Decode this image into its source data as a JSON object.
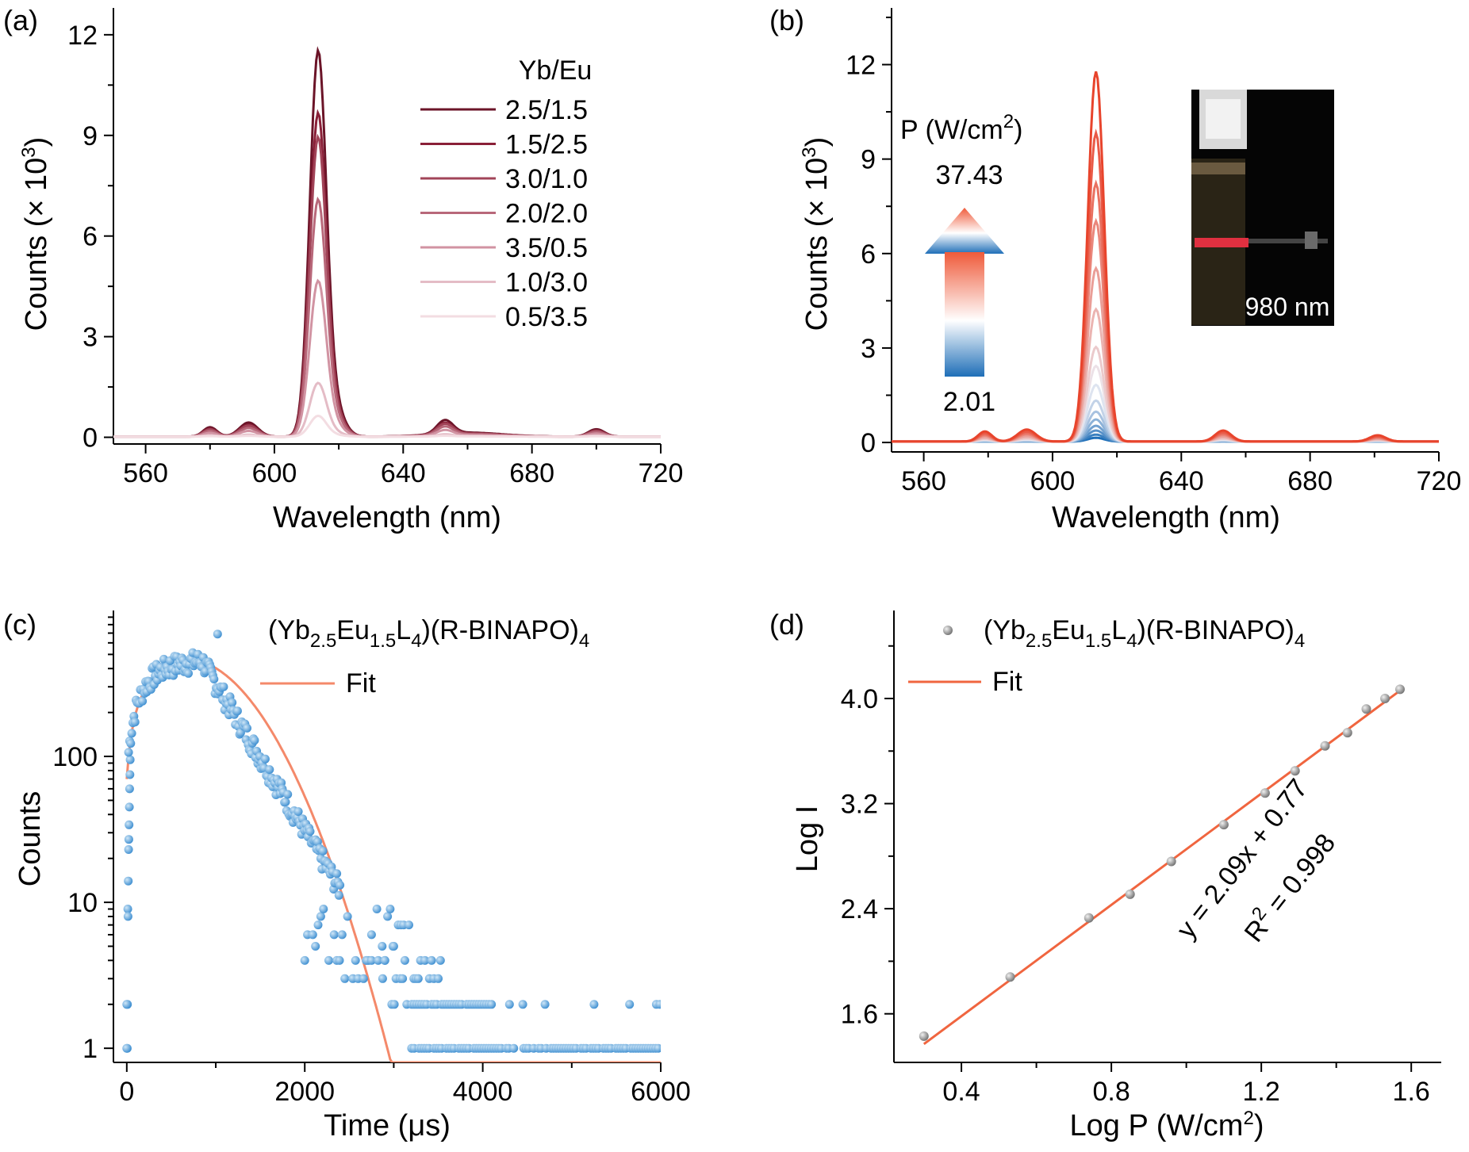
{
  "colors": {
    "a_series": [
      "#6b1428",
      "#8a2038",
      "#a14458",
      "#b8687a",
      "#d193a2",
      "#e4bcc6",
      "#f3dde2"
    ],
    "b_hot": "#e8442c",
    "b_cold": "#2a78c0",
    "c_points": "#5aa3d8",
    "c_fit": "#f4896a",
    "d_points": "#8a8a8a",
    "d_fit": "#f0653f"
  },
  "chart_data": [
    {
      "id": "a",
      "type": "line",
      "panel_label": "(a)",
      "xlabel": "Wavelength (nm)",
      "ylabel": "Counts (× 10",
      "ylabel_sup": "3",
      "ylabel_close": ")",
      "xlim": [
        550,
        720
      ],
      "ylim": [
        -0.2,
        12.8
      ],
      "xticks": [
        "560",
        "600",
        "640",
        "680",
        "720"
      ],
      "yticks": [
        "0",
        "3",
        "6",
        "9",
        "12"
      ],
      "legend_title": "Yb/Eu",
      "series": [
        {
          "name": "2.5/1.5",
          "peak": 11.15
        },
        {
          "name": "1.5/2.5",
          "peak": 9.35
        },
        {
          "name": "3.0/1.0",
          "peak": 8.65
        },
        {
          "name": "2.0/2.0",
          "peak": 6.85
        },
        {
          "name": "3.5/0.5",
          "peak": 4.5
        },
        {
          "name": "1.0/3.0",
          "peak": 1.55
        },
        {
          "name": "0.5/3.5",
          "peak": 0.6
        }
      ]
    },
    {
      "id": "b",
      "type": "line",
      "panel_label": "(b)",
      "xlabel": "Wavelength (nm)",
      "ylabel": "Counts (× 10",
      "ylabel_sup": "3",
      "ylabel_close": ")",
      "xlim": [
        550,
        720
      ],
      "ylim": [
        -0.3,
        13.8
      ],
      "xticks": [
        "560",
        "600",
        "640",
        "680",
        "720"
      ],
      "yticks": [
        "0",
        "3",
        "6",
        "9",
        "12"
      ],
      "power_title": "P (W/cm",
      "power_title_sup": "2",
      "power_title_close": ")",
      "power_max": "37.43",
      "power_min": "2.01",
      "inset_label": "980 nm",
      "series_peaks": [
        0.12,
        0.22,
        0.35,
        0.5,
        0.7,
        0.95,
        1.3,
        1.8,
        2.4,
        3.0,
        4.2,
        5.5,
        7.0,
        8.2,
        9.8,
        11.75
      ]
    },
    {
      "id": "c",
      "type": "scatter",
      "panel_label": "(c)",
      "xlabel": "Time (μs)",
      "ylabel": "Counts",
      "yscale": "log",
      "xlim": [
        -150,
        6000
      ],
      "ylim": [
        0.8,
        1000
      ],
      "xticks": [
        "0",
        "2000",
        "4000",
        "6000"
      ],
      "yticks": [
        "1",
        "10",
        "100"
      ],
      "legend": [
        {
          "name": "(Yb",
          "sub1": "2.5",
          "mid1": "Eu",
          "sub2": "1.5",
          "mid2": "L",
          "sub3": "4",
          "tail": ")(R-BINAPO)",
          "sub4": "4"
        },
        {
          "name": "Fit"
        }
      ],
      "rise_decay_peak": {
        "x": 830,
        "y": 450
      }
    },
    {
      "id": "d",
      "type": "scatter",
      "panel_label": "(d)",
      "xlabel": "Log P (W/cm",
      "xlabel_sup": "2",
      "xlabel_close": ")",
      "ylabel": "Log I",
      "xlim": [
        0.22,
        1.68
      ],
      "ylim": [
        1.23,
        4.67
      ],
      "xticks": [
        "0.4",
        "0.8",
        "1.2",
        "1.6"
      ],
      "yticks": [
        "1.6",
        "2.4",
        "3.2",
        "4.0"
      ],
      "x": [
        0.3,
        0.53,
        0.74,
        0.85,
        0.96,
        1.1,
        1.21,
        1.29,
        1.37,
        1.43,
        1.48,
        1.53,
        1.57
      ],
      "y": [
        1.43,
        1.88,
        2.33,
        2.51,
        2.76,
        3.04,
        3.28,
        3.45,
        3.64,
        3.74,
        3.92,
        4.0,
        4.07
      ],
      "fit_slope": 2.09,
      "fit_intercept": 0.77,
      "equation": "y = 2.09x + 0.77",
      "r2_label": "R",
      "r2_sup": "2",
      "r2_value": " = 0.998",
      "legend": [
        {
          "name": "(Yb",
          "sub1": "2.5",
          "mid1": "Eu",
          "sub2": "1.5",
          "mid2": "L",
          "sub3": "4",
          "tail": ")(R-BINAPO)",
          "sub4": "4"
        },
        {
          "name": "Fit"
        }
      ]
    }
  ]
}
